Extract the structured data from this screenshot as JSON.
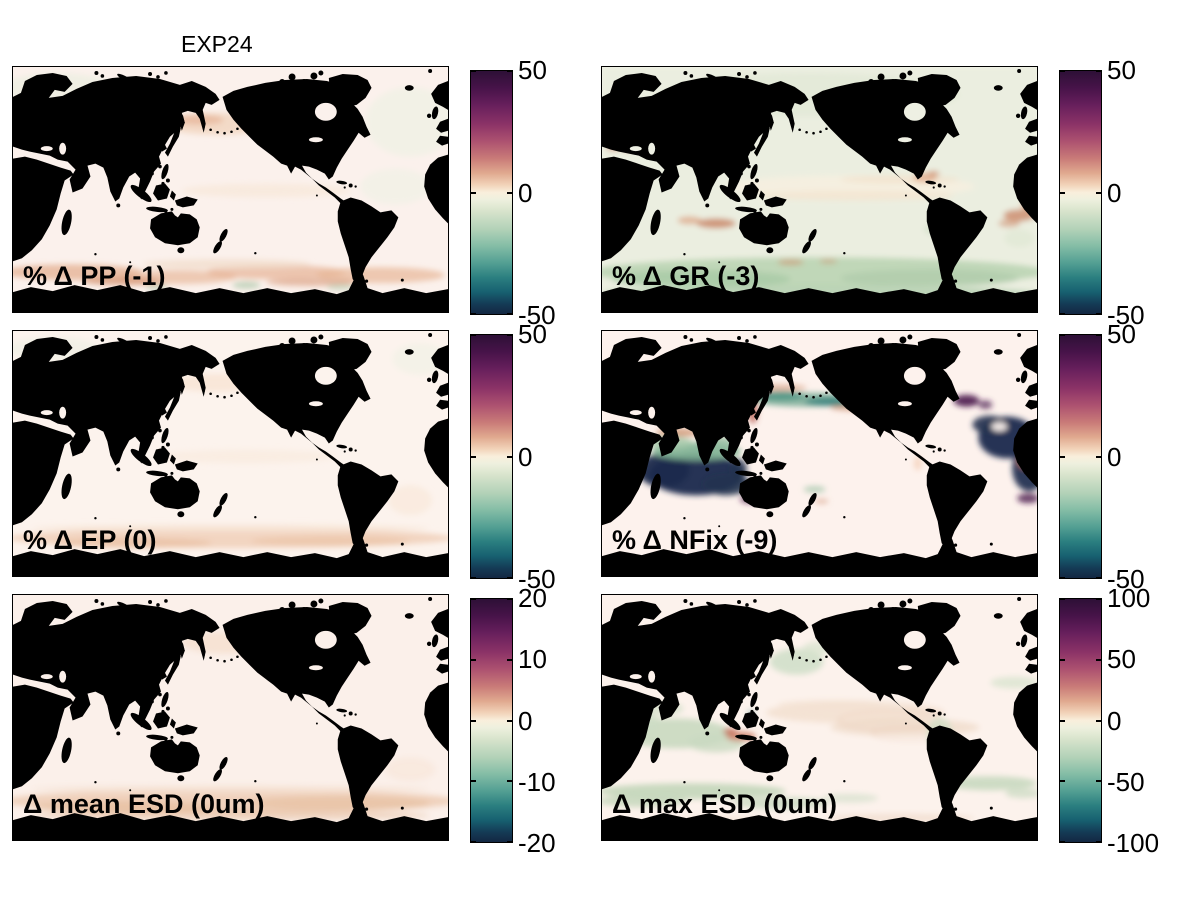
{
  "title": "EXP24",
  "colormap": {
    "description": "diverging colormap: dark purple / magenta / salmon for positive, off-white at zero, pale green / teal / dark navy for negative",
    "top_color": "#2d1036",
    "positive_mid_color": "#c97b78",
    "zero_color": "#f9efdc",
    "negative_mid_color": "#539f93",
    "bottom_color": "#132742",
    "land_color": "#000000",
    "background_color": "#ffffff"
  },
  "panels": [
    {
      "id": "pp",
      "label": "% Δ PP (-1)",
      "colorbar_ticks": [
        "50",
        "0",
        "-50"
      ]
    },
    {
      "id": "gr",
      "label": "% Δ GR (-3)",
      "colorbar_ticks": [
        "50",
        "0",
        "-50"
      ]
    },
    {
      "id": "ep",
      "label": "% Δ EP (0)",
      "colorbar_ticks": [
        "50",
        "0",
        "-50"
      ]
    },
    {
      "id": "nfix",
      "label": "% Δ NFix (-9)",
      "colorbar_ticks": [
        "50",
        "0",
        "-50"
      ]
    },
    {
      "id": "mean_esd",
      "label": "Δ mean ESD (0um)",
      "colorbar_ticks": [
        "20",
        "10",
        "0",
        "-10",
        "-20"
      ]
    },
    {
      "id": "max_esd",
      "label": "Δ max ESD (0um)",
      "colorbar_ticks": [
        "100",
        "50",
        "0",
        "-50",
        "-100"
      ]
    }
  ],
  "chart_data": {
    "type": "heatmap",
    "title": "EXP24",
    "layout": "2 columns x 3 rows of global ocean anomaly maps, Pacific-centered, land masked black, each with its own vertical diverging colorbar on the right",
    "panels": [
      {
        "type": "heatmap",
        "position": "row1-col1",
        "label": "% Δ PP (-1)",
        "variable": "PP",
        "quantity": "percent change",
        "global_change": -1,
        "colorbar_range": [
          -50,
          50
        ],
        "colorbar_ticks": [
          50,
          0,
          -50
        ],
        "pattern": "mostly near zero; mottled weak salmon(+) and green(-) anomalies in the Southern Ocean; faint salmon patch in NW Pacific; faint green tint in N Atlantic and subtropical gyres"
      },
      {
        "type": "heatmap",
        "position": "row1-col2",
        "label": "% Δ GR (-3)",
        "variable": "GR",
        "quantity": "percent change",
        "global_change": -3,
        "colorbar_range": [
          -50,
          50
        ],
        "colorbar_ticks": [
          50,
          0,
          -50
        ],
        "pattern": "broad weak negative (pale green) over most oceans, strongest green band in the Southern Ocean; salmon(+) patches west of Australia, in the equatorial Atlantic, Caribbean and Mediterranean"
      },
      {
        "type": "heatmap",
        "position": "row2-col1",
        "label": "% Δ EP (0)",
        "variable": "EP",
        "quantity": "percent change",
        "global_change": 0,
        "colorbar_range": [
          -50,
          50
        ],
        "colorbar_ticks": [
          50,
          0,
          -50
        ],
        "pattern": "near zero everywhere; faint smooth salmon(+) band in the Southern Ocean and faint salmon in NW Pacific"
      },
      {
        "type": "heatmap",
        "position": "row2-col2",
        "label": "% Δ NFix (-9)",
        "variable": "NFix",
        "quantity": "percent change",
        "global_change": -9,
        "colorbar_range": [
          -50,
          50
        ],
        "colorbar_ticks": [
          50,
          0,
          -50
        ],
        "pattern": "strong saturated anomalies: dark navy (≤-50) blobs in the Indian Ocean and Atlantic with green and salmon fringes, purple(+) spots near the Mediterranean and south of Australia, teal/green band with salmon edges in the NW Pacific; central Pacific near zero"
      },
      {
        "type": "heatmap",
        "position": "row3-col1",
        "label": "Δ mean ESD (0um)",
        "variable": "mean ESD",
        "quantity": "change (um)",
        "global_change": 0,
        "colorbar_range": [
          -20,
          20
        ],
        "colorbar_ticks": [
          20,
          10,
          0,
          -10,
          -20
        ],
        "pattern": "near zero everywhere; weak uniform salmon(+) band around the Southern Ocean and faint salmon in the Bering Sea"
      },
      {
        "type": "heatmap",
        "position": "row3-col2",
        "label": "Δ max ESD (0um)",
        "variable": "max ESD",
        "quantity": "change (um)",
        "global_change": 0,
        "colorbar_range": [
          -100,
          100
        ],
        "colorbar_ticks": [
          100,
          50,
          0,
          -50,
          -100
        ],
        "pattern": "near zero; pale green(-) patches in the Indian Ocean, NW Pacific and a wavy Southern Ocean band; faint salmon(+) contoured band in the equatorial Pacific; small strong salmon spot near Indonesia"
      }
    ]
  }
}
